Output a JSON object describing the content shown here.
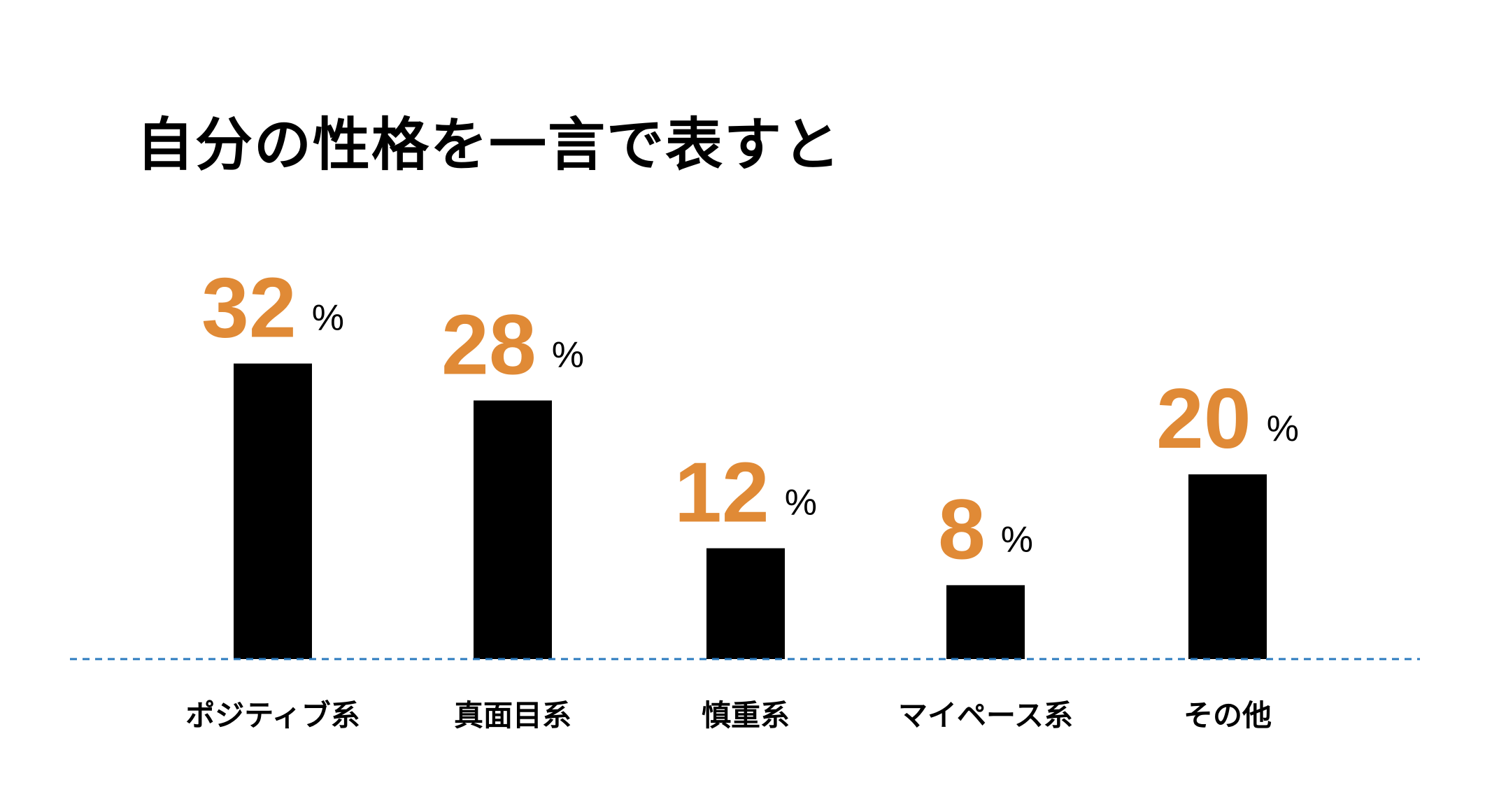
{
  "chart_data": {
    "type": "bar",
    "title": "自分の性格を一言で表すと",
    "categories": [
      "ポジティブ系",
      "真面目系",
      "慎重系",
      "マイペース系",
      "その他"
    ],
    "values": [
      32,
      28,
      12,
      8,
      20
    ],
    "value_unit": "%",
    "xlabel": "",
    "ylabel": "",
    "ylim": [
      0,
      40
    ],
    "grid": false,
    "legend": "none",
    "baseline_style": "dashed",
    "colors": {
      "bar": "#000000",
      "value_label": "#E08A36",
      "unit_label": "#000000",
      "baseline": "#2B7BBF",
      "text": "#000000",
      "background": "#FFFFFF"
    }
  }
}
